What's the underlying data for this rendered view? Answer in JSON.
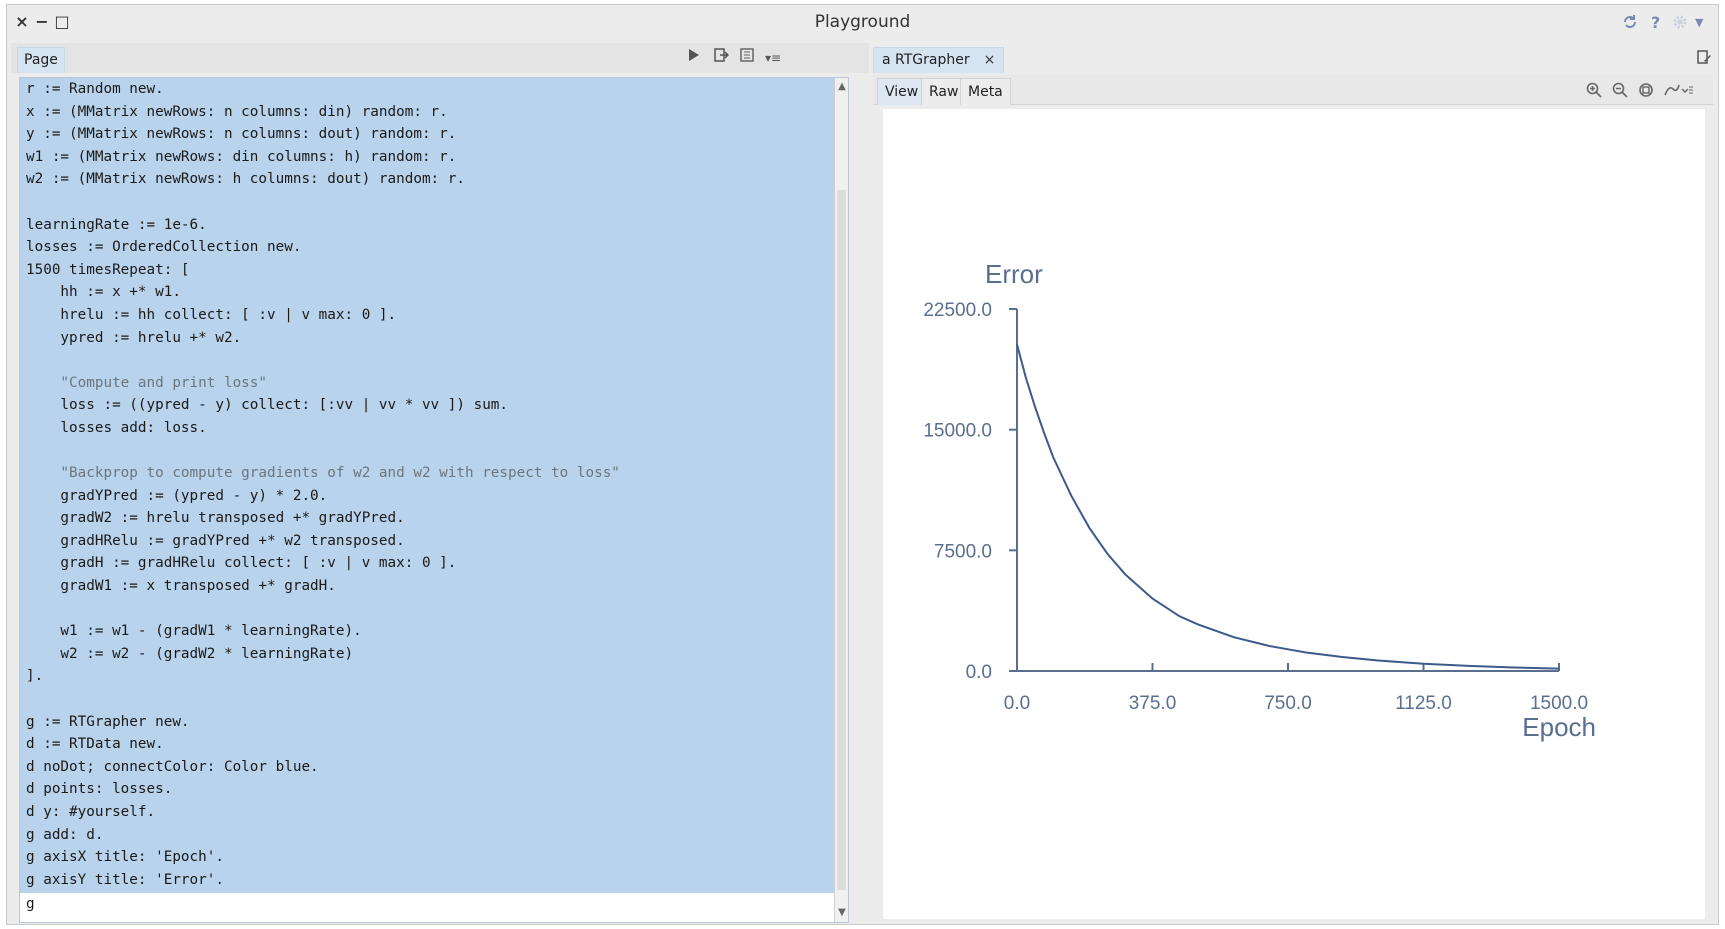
{
  "window": {
    "title": "Playground",
    "controls": {
      "close": "×",
      "minimize": "−",
      "maximize": "□"
    },
    "right_icons": [
      "sync-icon",
      "help-icon",
      "gear-icon",
      "dropdown-icon"
    ],
    "help_label": "?"
  },
  "left_pane": {
    "tab_label": "Page",
    "toolbar": [
      "run-icon",
      "do-it-icon",
      "inspect-icon",
      "menu-icon"
    ],
    "code_lines": [
      "r := Random new.",
      "x := (MMatrix newRows: n columns: din) random: r.",
      "y := (MMatrix newRows: n columns: dout) random: r.",
      "w1 := (MMatrix newRows: din columns: h) random: r.",
      "w2 := (MMatrix newRows: h columns: dout) random: r.",
      "",
      "learningRate := 1e-6.",
      "losses := OrderedCollection new.",
      "1500 timesRepeat: [",
      "    hh := x +* w1.",
      "    hrelu := hh collect: [ :v | v max: 0 ].",
      "    ypred := hrelu +* w2.",
      "",
      "    \"Compute and print loss\"",
      "    loss := ((ypred - y) collect: [:vv | vv * vv ]) sum.",
      "    losses add: loss.",
      "",
      "    \"Backprop to compute gradients of w2 and w2 with respect to loss\"",
      "    gradYPred := (ypred - y) * 2.0.",
      "    gradW2 := hrelu transposed +* gradYPred.",
      "    gradHRelu := gradYPred +* w2 transposed.",
      "    gradH := gradHRelu collect: [ :v | v max: 0 ].",
      "    gradW1 := x transposed +* gradH.",
      "",
      "    w1 := w1 - (gradW1 * learningRate).",
      "    w2 := w2 - (gradW2 * learningRate)",
      "].",
      "",
      "g := RTGrapher new.",
      "d := RTData new.",
      "d noDot; connectColor: Color blue.",
      "d points: losses.",
      "d y: #yourself.",
      "g add: d.",
      "g axisX title: 'Epoch'.",
      "g axisY title: 'Error'."
    ],
    "comment_line_indices": [
      13,
      17
    ],
    "cursor_line": "g"
  },
  "right_pane": {
    "tab_label": "a RTGrapher",
    "tab_close": "×",
    "subtabs": [
      "View",
      "Raw",
      "Meta"
    ],
    "active_subtab": "View",
    "view_tools": [
      "zoom-in-icon",
      "zoom-out-icon",
      "zoom-fit-icon",
      "inspect-menu-icon"
    ]
  },
  "chart_data": {
    "type": "line",
    "xlabel": "Epoch",
    "ylabel": "Error",
    "x_ticks": [
      "0.0",
      "375.0",
      "750.0",
      "1125.0",
      "1500.0"
    ],
    "y_ticks": [
      "0.0",
      "7500.0",
      "15000.0",
      "22500.0"
    ],
    "xlim": [
      0,
      1500
    ],
    "ylim": [
      0,
      22500
    ],
    "grid": false,
    "series_color": "#3c5a8a",
    "axis_color": "#5a6f8f",
    "series": [
      {
        "x": [
          0,
          25,
          50,
          75,
          100,
          150,
          200,
          250,
          300,
          375,
          450,
          500,
          600,
          700,
          750,
          800,
          900,
          1000,
          1125,
          1250,
          1375,
          1500
        ],
        "y": [
          20300,
          18200,
          16400,
          14800,
          13300,
          10900,
          8900,
          7300,
          6000,
          4500,
          3400,
          2900,
          2100,
          1550,
          1350,
          1150,
          870,
          650,
          450,
          320,
          220,
          150
        ]
      }
    ]
  }
}
